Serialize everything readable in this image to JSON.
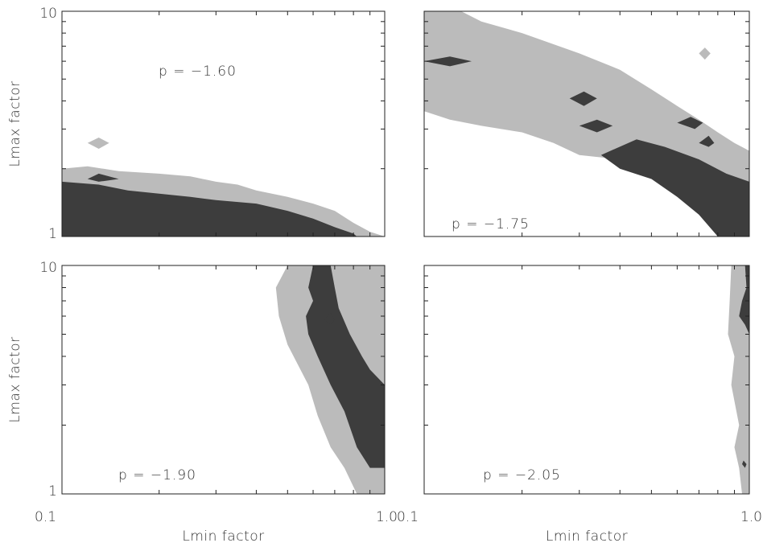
{
  "chart_data": [
    {
      "type": "contour",
      "panel": "top-left",
      "annotation": "p = −1.60",
      "xlabel": "",
      "ylabel": "Lmax factor",
      "x_scale": "log",
      "y_scale": "log",
      "xlim": [
        0.1,
        1.0
      ],
      "ylim": [
        1,
        10
      ],
      "x_tick_labels": [],
      "y_tick_labels": [
        "10",
        "1"
      ],
      "levels": [
        "outer (light gray)",
        "inner (dark gray)"
      ],
      "light_region": [
        [
          0.1,
          2.0
        ],
        [
          0.12,
          2.05
        ],
        [
          0.15,
          1.95
        ],
        [
          0.2,
          1.9
        ],
        [
          0.25,
          1.85
        ],
        [
          0.3,
          1.75
        ],
        [
          0.35,
          1.7
        ],
        [
          0.4,
          1.6
        ],
        [
          0.5,
          1.5
        ],
        [
          0.6,
          1.4
        ],
        [
          0.7,
          1.3
        ],
        [
          0.8,
          1.15
        ],
        [
          0.9,
          1.05
        ],
        [
          1.0,
          1.0
        ],
        [
          0.1,
          1.0
        ]
      ],
      "light_islands": [
        [
          [
            0.12,
            2.6
          ],
          [
            0.13,
            2.45
          ],
          [
            0.14,
            2.6
          ],
          [
            0.13,
            2.75
          ]
        ]
      ],
      "dark_region": [
        [
          0.1,
          1.75
        ],
        [
          0.13,
          1.7
        ],
        [
          0.16,
          1.6
        ],
        [
          0.2,
          1.55
        ],
        [
          0.25,
          1.5
        ],
        [
          0.3,
          1.45
        ],
        [
          0.4,
          1.4
        ],
        [
          0.5,
          1.3
        ],
        [
          0.6,
          1.2
        ],
        [
          0.7,
          1.1
        ],
        [
          0.8,
          1.03
        ],
        [
          0.82,
          1.0
        ],
        [
          0.1,
          1.0
        ]
      ],
      "dark_islands": [
        [
          [
            0.12,
            1.8
          ],
          [
            0.13,
            1.75
          ],
          [
            0.15,
            1.8
          ],
          [
            0.13,
            1.9
          ]
        ]
      ],
      "colors": {
        "light": "#bbbbbb",
        "dark": "#3d3d3d"
      }
    },
    {
      "type": "contour",
      "panel": "top-right",
      "annotation": "p = −1.75",
      "xlabel": "",
      "ylabel": "",
      "x_scale": "log",
      "y_scale": "log",
      "xlim": [
        0.1,
        1.0
      ],
      "ylim": [
        1,
        10
      ],
      "x_tick_labels": [],
      "y_tick_labels": [],
      "levels": [
        "outer (light gray)",
        "inner (dark gray)"
      ],
      "light_region": [
        [
          0.1,
          10.0
        ],
        [
          0.13,
          10.0
        ],
        [
          0.15,
          9.0
        ],
        [
          0.2,
          8.0
        ],
        [
          0.3,
          6.5
        ],
        [
          0.4,
          5.5
        ],
        [
          0.5,
          4.5
        ],
        [
          0.6,
          3.8
        ],
        [
          0.7,
          3.3
        ],
        [
          0.8,
          2.9
        ],
        [
          0.9,
          2.6
        ],
        [
          1.0,
          2.4
        ],
        [
          1.0,
          1.0
        ],
        [
          0.8,
          1.0
        ],
        [
          0.7,
          1.3
        ],
        [
          0.6,
          1.6
        ],
        [
          0.5,
          2.1
        ],
        [
          0.4,
          2.2
        ],
        [
          0.3,
          2.3
        ],
        [
          0.25,
          2.6
        ],
        [
          0.2,
          2.9
        ],
        [
          0.15,
          3.1
        ],
        [
          0.12,
          3.3
        ],
        [
          0.1,
          3.6
        ]
      ],
      "light_islands": [
        [
          [
            0.7,
            6.5
          ],
          [
            0.73,
            6.1
          ],
          [
            0.76,
            6.5
          ],
          [
            0.73,
            6.9
          ]
        ]
      ],
      "dark_region": [
        [
          0.45,
          2.7
        ],
        [
          0.55,
          2.5
        ],
        [
          0.7,
          2.2
        ],
        [
          0.85,
          1.9
        ],
        [
          1.0,
          1.75
        ],
        [
          1.0,
          1.0
        ],
        [
          0.8,
          1.0
        ],
        [
          0.7,
          1.25
        ],
        [
          0.6,
          1.5
        ],
        [
          0.5,
          1.8
        ],
        [
          0.4,
          2.0
        ],
        [
          0.35,
          2.3
        ]
      ],
      "dark_islands": [
        [
          [
            0.1,
            6.0
          ],
          [
            0.12,
            5.7
          ],
          [
            0.14,
            6.0
          ],
          [
            0.12,
            6.3
          ]
        ],
        [
          [
            0.28,
            4.1
          ],
          [
            0.31,
            3.8
          ],
          [
            0.34,
            4.1
          ],
          [
            0.31,
            4.4
          ]
        ],
        [
          [
            0.3,
            3.1
          ],
          [
            0.34,
            2.9
          ],
          [
            0.38,
            3.1
          ],
          [
            0.34,
            3.3
          ]
        ],
        [
          [
            0.6,
            3.2
          ],
          [
            0.68,
            3.0
          ],
          [
            0.72,
            3.2
          ],
          [
            0.66,
            3.4
          ]
        ],
        [
          [
            0.7,
            2.6
          ],
          [
            0.75,
            2.5
          ],
          [
            0.78,
            2.6
          ],
          [
            0.75,
            2.8
          ]
        ]
      ],
      "colors": {
        "light": "#bbbbbb",
        "dark": "#3d3d3d"
      }
    },
    {
      "type": "contour",
      "panel": "bottom-left",
      "annotation": "p = −1.90",
      "xlabel": "Lmin factor",
      "ylabel": "Lmax factor",
      "x_scale": "log",
      "y_scale": "log",
      "xlim": [
        0.1,
        1.0
      ],
      "ylim": [
        1,
        10
      ],
      "x_tick_labels": [
        "0.1",
        "1.0"
      ],
      "y_tick_labels": [
        "10",
        "1"
      ],
      "levels": [
        "outer (light gray)",
        "inner (dark gray)"
      ],
      "light_region": [
        [
          0.5,
          10.0
        ],
        [
          1.0,
          10.0
        ],
        [
          1.0,
          1.0
        ],
        [
          0.82,
          1.0
        ],
        [
          0.75,
          1.3
        ],
        [
          0.68,
          1.6
        ],
        [
          0.62,
          2.2
        ],
        [
          0.58,
          3.0
        ],
        [
          0.5,
          4.5
        ],
        [
          0.47,
          6.0
        ],
        [
          0.46,
          8.0
        ]
      ],
      "dark_region": [
        [
          0.6,
          10.0
        ],
        [
          0.68,
          10.0
        ],
        [
          0.7,
          8.0
        ],
        [
          0.72,
          6.5
        ],
        [
          0.78,
          5.0
        ],
        [
          0.85,
          4.0
        ],
        [
          0.9,
          3.5
        ],
        [
          1.0,
          3.0
        ],
        [
          1.0,
          1.3
        ],
        [
          0.9,
          1.3
        ],
        [
          0.82,
          1.6
        ],
        [
          0.75,
          2.3
        ],
        [
          0.68,
          3.0
        ],
        [
          0.62,
          4.0
        ],
        [
          0.58,
          5.0
        ],
        [
          0.57,
          6.0
        ],
        [
          0.6,
          7.0
        ],
        [
          0.58,
          8.0
        ]
      ],
      "dark_islands": [
        [
          [
            0.65,
            5.8
          ],
          [
            0.68,
            5.5
          ],
          [
            0.7,
            5.8
          ],
          [
            0.68,
            6.2
          ]
        ]
      ],
      "colors": {
        "light": "#bbbbbb",
        "dark": "#3d3d3d"
      }
    },
    {
      "type": "contour",
      "panel": "bottom-right",
      "annotation": "p = −2.05",
      "xlabel": "Lmin factor",
      "ylabel": "",
      "x_scale": "log",
      "y_scale": "log",
      "xlim": [
        0.1,
        1.0
      ],
      "ylim": [
        1,
        10
      ],
      "x_tick_labels": [
        "0.1",
        "1.0"
      ],
      "y_tick_labels": [],
      "levels": [
        "outer (light gray)",
        "inner (dark gray)"
      ],
      "light_region": [
        [
          0.88,
          10.0
        ],
        [
          1.0,
          10.0
        ],
        [
          1.0,
          1.0
        ],
        [
          0.95,
          1.0
        ],
        [
          0.93,
          1.3
        ],
        [
          0.9,
          1.6
        ],
        [
          0.93,
          2.0
        ],
        [
          0.88,
          3.0
        ],
        [
          0.9,
          4.0
        ],
        [
          0.86,
          5.0
        ],
        [
          0.87,
          7.0
        ]
      ],
      "dark_region": [
        [
          0.97,
          10.0
        ],
        [
          1.0,
          10.0
        ],
        [
          1.0,
          5.0
        ],
        [
          0.97,
          5.5
        ],
        [
          0.93,
          6.0
        ],
        [
          0.95,
          7.0
        ],
        [
          0.98,
          8.0
        ]
      ],
      "dark_islands": [
        [
          [
            0.95,
            1.35
          ],
          [
            0.97,
            1.3
          ],
          [
            0.98,
            1.35
          ],
          [
            0.96,
            1.4
          ]
        ]
      ],
      "colors": {
        "light": "#bbbbbb",
        "dark": "#3d3d3d"
      }
    }
  ]
}
